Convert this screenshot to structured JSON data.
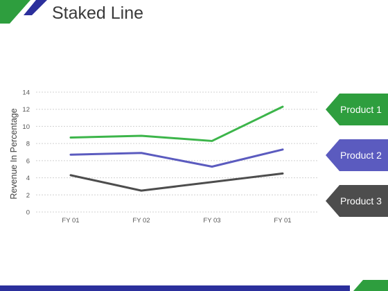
{
  "title": "Staked Line",
  "colors": {
    "green": "#2e9e3e",
    "purple": "#5b5bbf",
    "dark": "#4d4d4d",
    "grid": "#d0d0d0",
    "navy": "#2b2f9c"
  },
  "callouts": [
    {
      "label": "Product 1",
      "color": "#2e9e3e"
    },
    {
      "label": "Product 2",
      "color": "#5b5bbf"
    },
    {
      "label": "Product 3",
      "color": "#4d4d4d"
    }
  ],
  "chart_data": {
    "type": "line",
    "categories": [
      "FY 01",
      "FY 02",
      "FY 03",
      "FY 01"
    ],
    "ylabel": "Revenue In Percentage",
    "xlabel": "",
    "ylim": [
      0,
      14
    ],
    "yticks": [
      0,
      2,
      4,
      6,
      8,
      10,
      12,
      14
    ],
    "grid": true,
    "legend": "right-side arrow callouts",
    "series": [
      {
        "name": "Product 1",
        "color": "#3cb54a",
        "values": [
          8.7,
          8.9,
          8.3,
          12.3
        ]
      },
      {
        "name": "Product 2",
        "color": "#5b5bbf",
        "values": [
          6.7,
          6.9,
          5.3,
          7.3
        ]
      },
      {
        "name": "Product 3",
        "color": "#4d4d4d",
        "values": [
          4.3,
          2.5,
          3.5,
          4.5
        ]
      }
    ]
  }
}
